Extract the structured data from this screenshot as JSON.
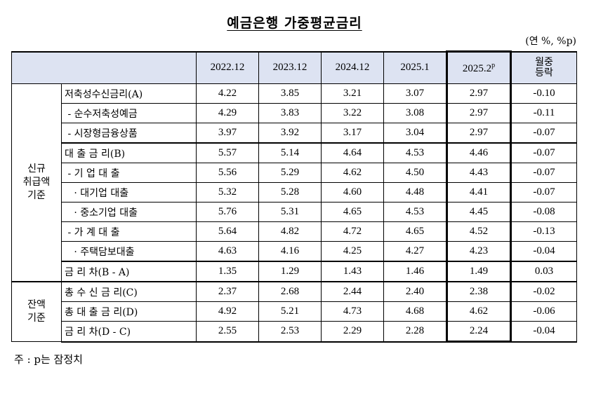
{
  "title": "예금은행 가중평균금리",
  "unit": "(연 %, %p)",
  "headers": {
    "col1": "2022.12",
    "col2": "2023.12",
    "col3": "2024.12",
    "col4": "2025.1",
    "col5": "2025.2",
    "col5_sup": "p",
    "col6_line1": "월중",
    "col6_line2": "등락"
  },
  "groups": {
    "new": [
      "신규",
      "취급액",
      "기준"
    ],
    "balance": [
      "잔액",
      "기준"
    ]
  },
  "rows": [
    {
      "label": "저축성수신금리(A)",
      "values": [
        "4.22",
        "3.85",
        "3.21",
        "3.07",
        "2.97",
        "-0.10"
      ]
    },
    {
      "label": " - 순수저축성예금",
      "values": [
        "4.29",
        "3.83",
        "3.22",
        "3.08",
        "2.97",
        "-0.11"
      ]
    },
    {
      "label": " - 시장형금융상품",
      "values": [
        "3.97",
        "3.92",
        "3.17",
        "3.04",
        "2.97",
        "-0.07"
      ]
    },
    {
      "label": "대 출 금 리(B)",
      "values": [
        "5.57",
        "5.14",
        "4.64",
        "4.53",
        "4.46",
        "-0.07"
      ]
    },
    {
      "label": " - 기 업 대 출",
      "values": [
        "5.56",
        "5.29",
        "4.62",
        "4.50",
        "4.43",
        "-0.07"
      ]
    },
    {
      "label": "   · 대기업 대출",
      "values": [
        "5.32",
        "5.28",
        "4.60",
        "4.48",
        "4.41",
        "-0.07"
      ]
    },
    {
      "label": "   · 중소기업 대출",
      "values": [
        "5.76",
        "5.31",
        "4.65",
        "4.53",
        "4.45",
        "-0.08"
      ]
    },
    {
      "label": " - 가 계 대 출",
      "values": [
        "5.64",
        "4.82",
        "4.72",
        "4.65",
        "4.52",
        "-0.13"
      ]
    },
    {
      "label": "   · 주택담보대출",
      "values": [
        "4.63",
        "4.16",
        "4.25",
        "4.27",
        "4.23",
        "-0.04"
      ]
    },
    {
      "label": "금 리 차(B - A)",
      "values": [
        "1.35",
        "1.29",
        "1.43",
        "1.46",
        "1.49",
        "0.03"
      ]
    },
    {
      "label": "총 수 신 금 리(C)",
      "values": [
        "2.37",
        "2.68",
        "2.44",
        "2.40",
        "2.38",
        "-0.02"
      ]
    },
    {
      "label": "총 대 출 금 리(D)",
      "values": [
        "4.92",
        "5.21",
        "4.73",
        "4.68",
        "4.62",
        "-0.06"
      ]
    },
    {
      "label": "금 리 차(D - C)",
      "values": [
        "2.55",
        "2.53",
        "2.29",
        "2.28",
        "2.24",
        "-0.04"
      ]
    }
  ],
  "note": "주 : p는 잠정치"
}
